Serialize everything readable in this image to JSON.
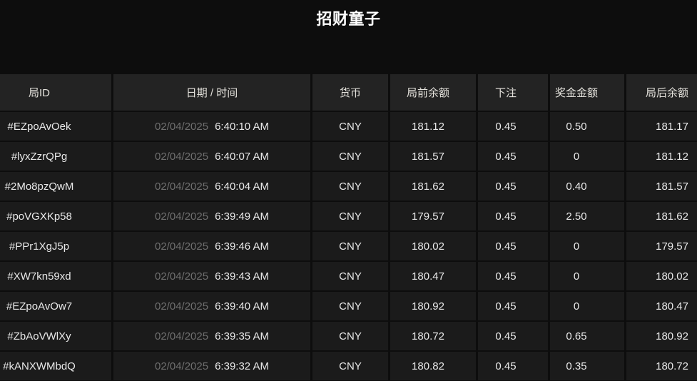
{
  "title": "招财童子",
  "colors": {
    "page_background": "#0d0d0d",
    "header_cell_background": "#232323",
    "row_cell_background": "#1b1b1b",
    "primary_text": "#e9e9e9",
    "dimmed_date_text": "#6f6f6f",
    "title_text": "#ffffff"
  },
  "table": {
    "headers": [
      "局ID",
      "日期 / 时间",
      "货币",
      "局前余额",
      "下注",
      "奖金金额",
      "局后余额"
    ],
    "rows": [
      {
        "id": "#EZpoAvOek",
        "date": "02/04/2025",
        "time": "6:40:10 AM",
        "currency": "CNY",
        "balance_before": "181.12",
        "bet": "0.45",
        "prize": "0.50",
        "balance_after": "181.17"
      },
      {
        "id": "#lyxZzrQPg",
        "date": "02/04/2025",
        "time": "6:40:07 AM",
        "currency": "CNY",
        "balance_before": "181.57",
        "bet": "0.45",
        "prize": "0",
        "balance_after": "181.12"
      },
      {
        "id": "#2Mo8pzQwM",
        "date": "02/04/2025",
        "time": "6:40:04 AM",
        "currency": "CNY",
        "balance_before": "181.62",
        "bet": "0.45",
        "prize": "0.40",
        "balance_after": "181.57"
      },
      {
        "id": "#poVGXKp58",
        "date": "02/04/2025",
        "time": "6:39:49 AM",
        "currency": "CNY",
        "balance_before": "179.57",
        "bet": "0.45",
        "prize": "2.50",
        "balance_after": "181.62"
      },
      {
        "id": "#PPr1XgJ5p",
        "date": "02/04/2025",
        "time": "6:39:46 AM",
        "currency": "CNY",
        "balance_before": "180.02",
        "bet": "0.45",
        "prize": "0",
        "balance_after": "179.57"
      },
      {
        "id": "#XW7kn59xd",
        "date": "02/04/2025",
        "time": "6:39:43 AM",
        "currency": "CNY",
        "balance_before": "180.47",
        "bet": "0.45",
        "prize": "0",
        "balance_after": "180.02"
      },
      {
        "id": "#EZpoAvOw7",
        "date": "02/04/2025",
        "time": "6:39:40 AM",
        "currency": "CNY",
        "balance_before": "180.92",
        "bet": "0.45",
        "prize": "0",
        "balance_after": "180.47"
      },
      {
        "id": "#ZbAoVWlXy",
        "date": "02/04/2025",
        "time": "6:39:35 AM",
        "currency": "CNY",
        "balance_before": "180.72",
        "bet": "0.45",
        "prize": "0.65",
        "balance_after": "180.92"
      },
      {
        "id": "#kANXWMbdQ",
        "date": "02/04/2025",
        "time": "6:39:32 AM",
        "currency": "CNY",
        "balance_before": "180.82",
        "bet": "0.45",
        "prize": "0.35",
        "balance_after": "180.72"
      }
    ]
  }
}
